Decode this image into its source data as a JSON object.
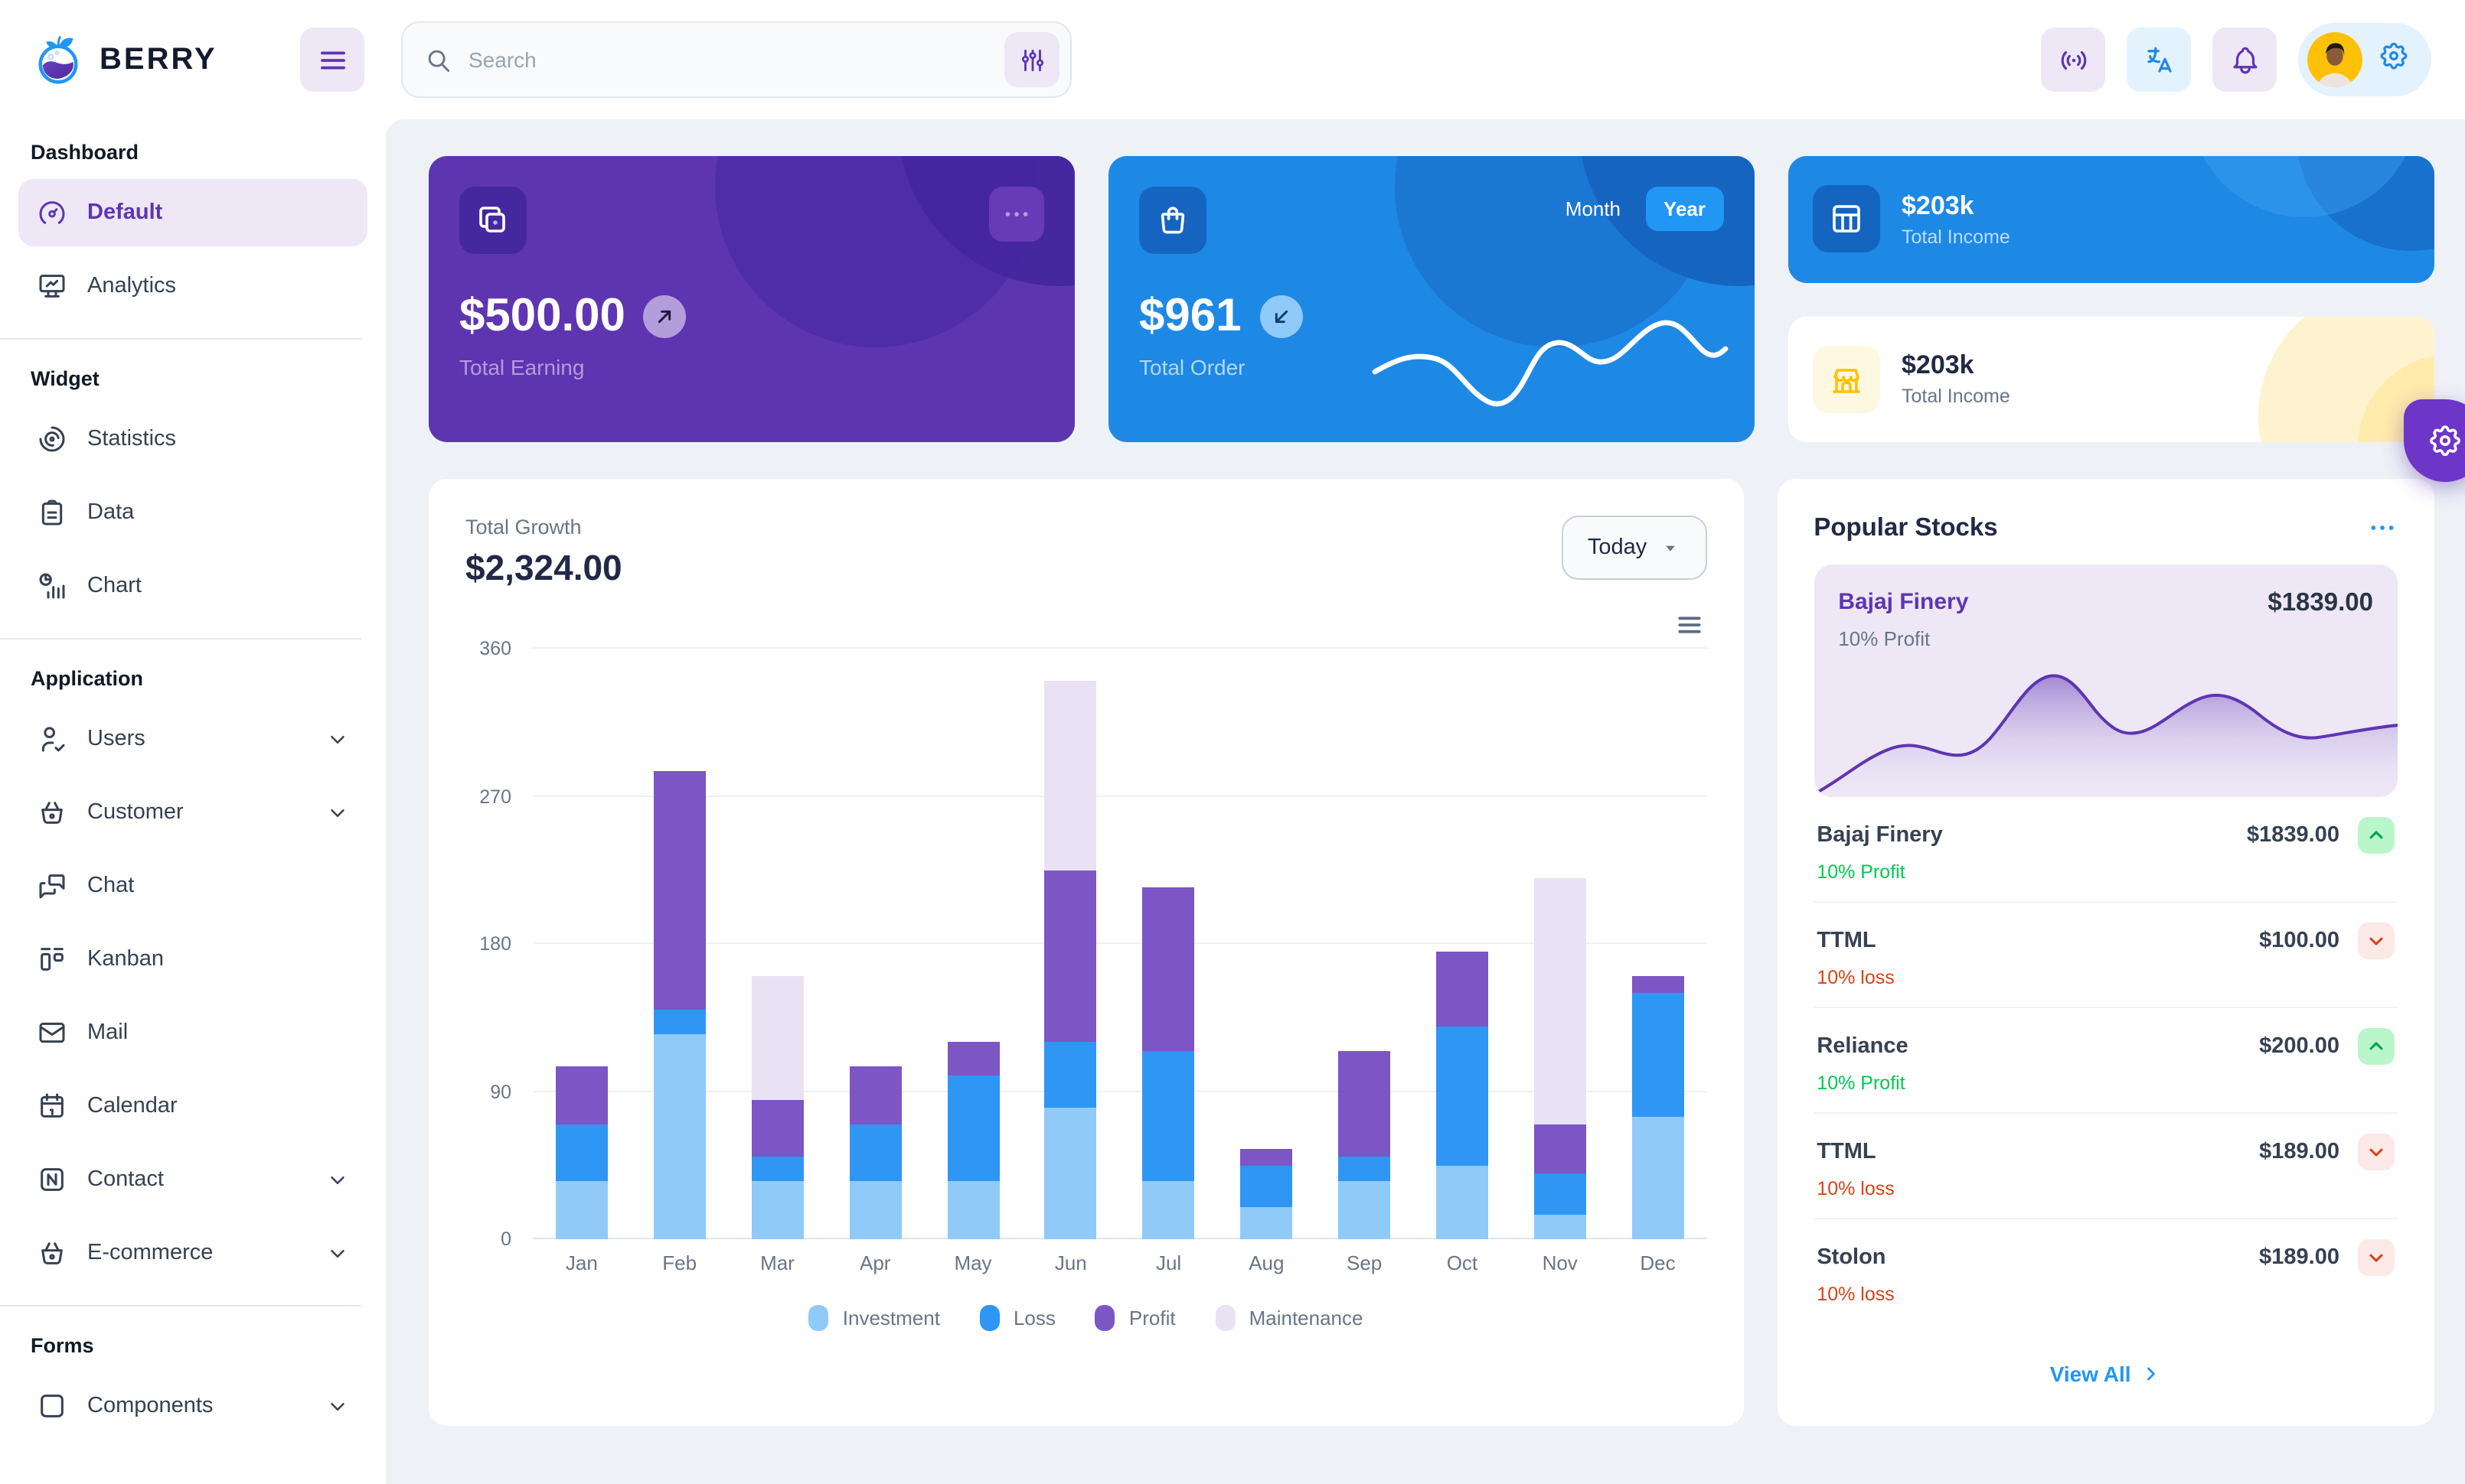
{
  "header": {
    "brand": "BERRY",
    "search": {
      "placeholder": "Search"
    }
  },
  "sidebar": {
    "sections": [
      {
        "heading": "Dashboard",
        "items": [
          {
            "label": "Default",
            "icon": "gauge",
            "active": true
          },
          {
            "label": "Analytics",
            "icon": "device-analytics"
          }
        ]
      },
      {
        "heading": "Widget",
        "items": [
          {
            "label": "Statistics",
            "icon": "chart-arcs"
          },
          {
            "label": "Data",
            "icon": "clipboard"
          },
          {
            "label": "Chart",
            "icon": "chart-infographic"
          }
        ]
      },
      {
        "heading": "Application",
        "items": [
          {
            "label": "Users",
            "icon": "user-check",
            "chevron": true
          },
          {
            "label": "Customer",
            "icon": "basket",
            "chevron": true
          },
          {
            "label": "Chat",
            "icon": "messages"
          },
          {
            "label": "Kanban",
            "icon": "kanban"
          },
          {
            "label": "Mail",
            "icon": "mail"
          },
          {
            "label": "Calendar",
            "icon": "calendar"
          },
          {
            "label": "Contact",
            "icon": "nfc-box",
            "chevron": true
          },
          {
            "label": "E-commerce",
            "icon": "basket",
            "chevron": true
          }
        ]
      },
      {
        "heading": "Forms",
        "items": [
          {
            "label": "Components",
            "icon": "box",
            "chevron": true
          }
        ]
      }
    ]
  },
  "cards": {
    "earning": {
      "amount": "$500.00",
      "label": "Total Earning"
    },
    "order": {
      "amount": "$961",
      "label": "Total Order",
      "month_label": "Month",
      "year_label": "Year",
      "active_toggle": "Year"
    },
    "income_blue": {
      "amount": "$203k",
      "label": "Total Income"
    },
    "income_light": {
      "amount": "$203k",
      "label": "Total Income"
    }
  },
  "growth": {
    "title": "Total Growth",
    "amount": "$2,324.00",
    "range_selector": "Today"
  },
  "chart_data": {
    "type": "bar",
    "stacked": true,
    "title": "Total Growth",
    "categories": [
      "Jan",
      "Feb",
      "Mar",
      "Apr",
      "May",
      "Jun",
      "Jul",
      "Aug",
      "Sep",
      "Oct",
      "Nov",
      "Dec"
    ],
    "series": [
      {
        "name": "Investment",
        "color": "#90caf9",
        "values": [
          35,
          125,
          35,
          35,
          35,
          80,
          35,
          20,
          35,
          45,
          15,
          75
        ]
      },
      {
        "name": "Loss",
        "color": "#2f96f3",
        "values": [
          35,
          15,
          15,
          35,
          65,
          40,
          80,
          25,
          15,
          85,
          25,
          75
        ]
      },
      {
        "name": "Profit",
        "color": "#7b56c4",
        "values": [
          35,
          145,
          35,
          35,
          20,
          105,
          100,
          10,
          65,
          45,
          30,
          10
        ]
      },
      {
        "name": "Maintenance",
        "color": "#e9e2f4",
        "values": [
          0,
          0,
          75,
          0,
          0,
          115,
          0,
          0,
          0,
          0,
          150,
          0
        ]
      }
    ],
    "ylim": [
      0,
      360
    ],
    "yticks": [
      0,
      90,
      180,
      270,
      360
    ],
    "grid": "horizontal",
    "legend_position": "bottom"
  },
  "stocks": {
    "title": "Popular Stocks",
    "featured": {
      "name": "Bajaj Finery",
      "price": "$1839.00",
      "change": "10% Profit"
    },
    "rows": [
      {
        "name": "Bajaj Finery",
        "price": "$1839.00",
        "change": "10% Profit",
        "direction": "up"
      },
      {
        "name": "TTML",
        "price": "$100.00",
        "change": "10% loss",
        "direction": "down"
      },
      {
        "name": "Reliance",
        "price": "$200.00",
        "change": "10% Profit",
        "direction": "up"
      },
      {
        "name": "TTML",
        "price": "$189.00",
        "change": "10% loss",
        "direction": "down"
      },
      {
        "name": "Stolon",
        "price": "$189.00",
        "change": "10% loss",
        "direction": "down"
      }
    ],
    "view_all": "View All"
  },
  "colors": {
    "page_bg": "#eef2f6",
    "primary": "#2196f3",
    "primary_dark": "#1e88e5",
    "primary_800": "#1565c0",
    "secondary": "#673ab7",
    "secondary_dark": "#5e35b1",
    "secondary_800": "#4527a0",
    "secondary_light": "#ede7f6",
    "success": "#00c853",
    "error": "#d84315",
    "warning": "#ffc107",
    "warning_light": "#fff8e1"
  }
}
